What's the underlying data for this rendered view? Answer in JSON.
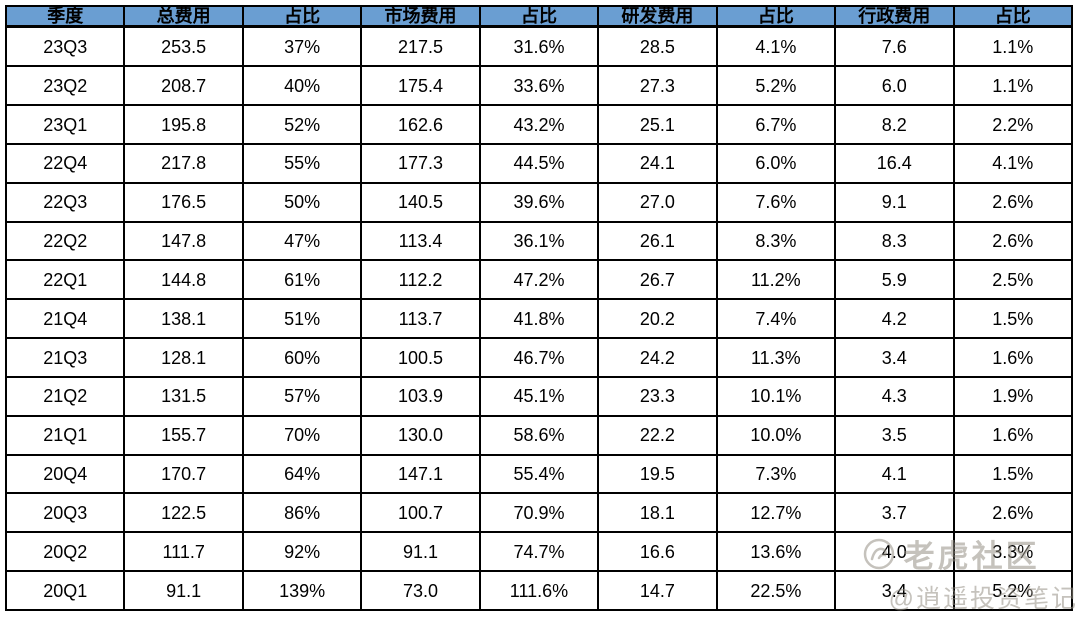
{
  "chart_data": {
    "type": "table",
    "columns": [
      "季度",
      "总费用",
      "占比",
      "市场费用",
      "占比",
      "研发费用",
      "占比",
      "行政费用",
      "占比"
    ],
    "rows": [
      [
        "23Q3",
        "253.5",
        "37%",
        "217.5",
        "31.6%",
        "28.5",
        "4.1%",
        "7.6",
        "1.1%"
      ],
      [
        "23Q2",
        "208.7",
        "40%",
        "175.4",
        "33.6%",
        "27.3",
        "5.2%",
        "6.0",
        "1.1%"
      ],
      [
        "23Q1",
        "195.8",
        "52%",
        "162.6",
        "43.2%",
        "25.1",
        "6.7%",
        "8.2",
        "2.2%"
      ],
      [
        "22Q4",
        "217.8",
        "55%",
        "177.3",
        "44.5%",
        "24.1",
        "6.0%",
        "16.4",
        "4.1%"
      ],
      [
        "22Q3",
        "176.5",
        "50%",
        "140.5",
        "39.6%",
        "27.0",
        "7.6%",
        "9.1",
        "2.6%"
      ],
      [
        "22Q2",
        "147.8",
        "47%",
        "113.4",
        "36.1%",
        "26.1",
        "8.3%",
        "8.3",
        "2.6%"
      ],
      [
        "22Q1",
        "144.8",
        "61%",
        "112.2",
        "47.2%",
        "26.7",
        "11.2%",
        "5.9",
        "2.5%"
      ],
      [
        "21Q4",
        "138.1",
        "51%",
        "113.7",
        "41.8%",
        "20.2",
        "7.4%",
        "4.2",
        "1.5%"
      ],
      [
        "21Q3",
        "128.1",
        "60%",
        "100.5",
        "46.7%",
        "24.2",
        "11.3%",
        "3.4",
        "1.6%"
      ],
      [
        "21Q2",
        "131.5",
        "57%",
        "103.9",
        "45.1%",
        "23.3",
        "10.1%",
        "4.3",
        "1.9%"
      ],
      [
        "21Q1",
        "155.7",
        "70%",
        "130.0",
        "58.6%",
        "22.2",
        "10.0%",
        "3.5",
        "1.6%"
      ],
      [
        "20Q4",
        "170.7",
        "64%",
        "147.1",
        "55.4%",
        "19.5",
        "7.3%",
        "4.1",
        "1.5%"
      ],
      [
        "20Q3",
        "122.5",
        "86%",
        "100.7",
        "70.9%",
        "18.1",
        "12.7%",
        "3.7",
        "2.6%"
      ],
      [
        "20Q2",
        "111.7",
        "92%",
        "91.1",
        "74.7%",
        "16.6",
        "13.6%",
        "4.0",
        "3.3%"
      ],
      [
        "20Q1",
        "91.1",
        "139%",
        "73.0",
        "111.6%",
        "14.7",
        "22.5%",
        "3.4",
        "5.2%"
      ]
    ],
    "grid": "all-borders",
    "legend_position": "none"
  },
  "watermark": {
    "community": "老虎社区",
    "handle": "@逍遥投资笔记"
  },
  "colors": {
    "header_bg": "#6A9ED2",
    "border": "#000000",
    "watermark_gray": "#968F83"
  }
}
